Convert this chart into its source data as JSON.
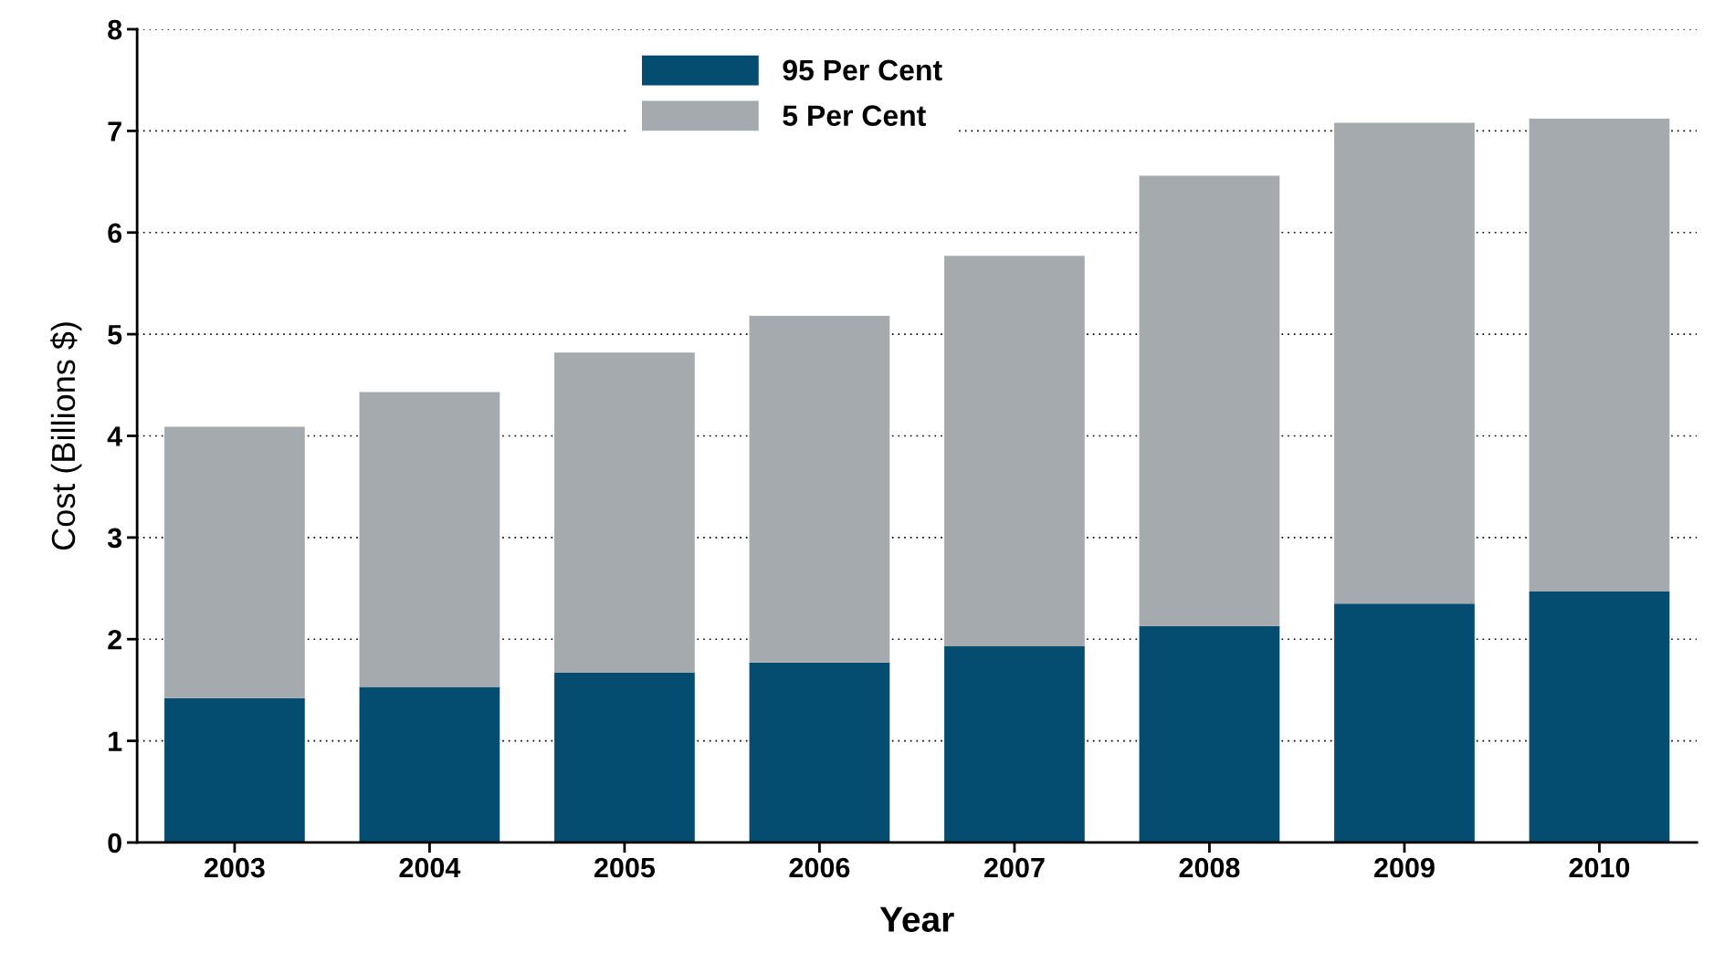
{
  "chart_data": {
    "type": "bar",
    "stacked": true,
    "xlabel": "Year",
    "ylabel": "Cost (Billions $)",
    "categories": [
      "2003",
      "2004",
      "2005",
      "2006",
      "2007",
      "2008",
      "2009",
      "2010"
    ],
    "series": [
      {
        "name": "95 Per Cent",
        "color": "#044d70",
        "values": [
          1.42,
          1.53,
          1.67,
          1.77,
          1.93,
          2.13,
          2.35,
          2.47
        ]
      },
      {
        "name": "5 Per Cent",
        "color": "#a4aaad",
        "values": [
          2.67,
          2.9,
          3.15,
          3.41,
          3.84,
          4.43,
          4.73,
          4.65
        ]
      }
    ],
    "ylim": [
      0,
      8
    ],
    "yticks": [
      0,
      1,
      2,
      3,
      4,
      5,
      6,
      7,
      8
    ],
    "grid": "y",
    "legend": "top"
  }
}
